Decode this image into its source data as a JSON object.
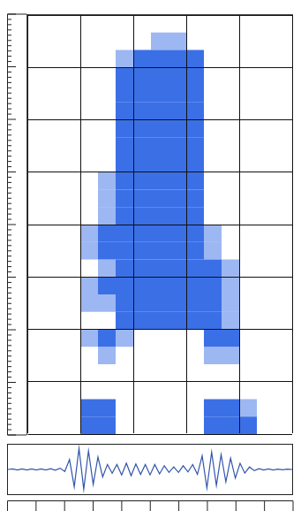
{
  "chart_data": [
    {
      "type": "heatmap",
      "xlim": [
        0,
        15
      ],
      "ylim": [
        0,
        24
      ],
      "xticks": [
        0,
        3,
        6,
        9,
        12,
        15
      ],
      "yticks": [
        0,
        3,
        6,
        9,
        12,
        15,
        18,
        21,
        24
      ],
      "grid": true,
      "tick_labels": false,
      "color": "#3b6fe6",
      "cells": [
        [
          0,
          0,
          0,
          1,
          1,
          0,
          0,
          0,
          0,
          0,
          1,
          1,
          1,
          0,
          0
        ],
        [
          0,
          0,
          0,
          1,
          1,
          0,
          0,
          0,
          0,
          0,
          1,
          1,
          0.5,
          0,
          0
        ],
        [
          0,
          0,
          0,
          0,
          0,
          0,
          0,
          0,
          0,
          0,
          0,
          0,
          0,
          0,
          0
        ],
        [
          0,
          0,
          0,
          0,
          0,
          0,
          0,
          0,
          0,
          0,
          0,
          0,
          0,
          0,
          0
        ],
        [
          0,
          0,
          0,
          0,
          0.5,
          0,
          0,
          0,
          0,
          0,
          0.5,
          0.5,
          0,
          0,
          0
        ],
        [
          0,
          0,
          0,
          0.5,
          1,
          0.5,
          0,
          0,
          0,
          0,
          1,
          1,
          0,
          0,
          0
        ],
        [
          0,
          0,
          0,
          0,
          0,
          1,
          1,
          1,
          1,
          1,
          1,
          0.5,
          0,
          0,
          0
        ],
        [
          0,
          0,
          0,
          0.5,
          0.5,
          1,
          1,
          1,
          1,
          1,
          1,
          0.5,
          0,
          0,
          0
        ],
        [
          0,
          0,
          0,
          0.5,
          1,
          1,
          1,
          1,
          1,
          1,
          1,
          0.5,
          0,
          0,
          0
        ],
        [
          0,
          0,
          0,
          0,
          0.5,
          1,
          1,
          1,
          1,
          1,
          1,
          0.5,
          0,
          0,
          0
        ],
        [
          0,
          0,
          0,
          0.5,
          1,
          1,
          1,
          1,
          1,
          1,
          0.5,
          0,
          0,
          0,
          0
        ],
        [
          0,
          0,
          0,
          0.5,
          1,
          1,
          1,
          1,
          1,
          1,
          0.5,
          0,
          0,
          0,
          0
        ],
        [
          0,
          0,
          0,
          0,
          0.5,
          1,
          1,
          1,
          1,
          1,
          0,
          0,
          0,
          0,
          0
        ],
        [
          0,
          0,
          0,
          0,
          0.5,
          1,
          1,
          1,
          1,
          1,
          0,
          0,
          0,
          0,
          0
        ],
        [
          0,
          0,
          0,
          0,
          0.5,
          1,
          1,
          1,
          1,
          1,
          0,
          0,
          0,
          0,
          0
        ],
        [
          0,
          0,
          0,
          0,
          0,
          1,
          1,
          1,
          1,
          1,
          0,
          0,
          0,
          0,
          0
        ],
        [
          0,
          0,
          0,
          0,
          0,
          1,
          1,
          1,
          1,
          1,
          0,
          0,
          0,
          0,
          0
        ],
        [
          0,
          0,
          0,
          0,
          0,
          1,
          1,
          1,
          1,
          1,
          0,
          0,
          0,
          0,
          0
        ],
        [
          0,
          0,
          0,
          0,
          0,
          1,
          1,
          1,
          1,
          1,
          0,
          0,
          0,
          0,
          0
        ],
        [
          0,
          0,
          0,
          0,
          0,
          1,
          1,
          1,
          1,
          1,
          0,
          0,
          0,
          0,
          0
        ],
        [
          0,
          0,
          0,
          0,
          0,
          1,
          1,
          1,
          1,
          1,
          0,
          0,
          0,
          0,
          0
        ],
        [
          0,
          0,
          0,
          0,
          0,
          0.5,
          1,
          1,
          1,
          1,
          0,
          0,
          0,
          0,
          0
        ],
        [
          0,
          0,
          0,
          0,
          0,
          0,
          0,
          0.5,
          0.5,
          0,
          0,
          0,
          0,
          0,
          0
        ],
        [
          0,
          0,
          0,
          0,
          0,
          0,
          0,
          0,
          0,
          0,
          0,
          0,
          0,
          0,
          0
        ]
      ]
    },
    {
      "type": "line",
      "xlim": [
        0,
        15
      ],
      "ylim": [
        -1,
        1
      ],
      "grid": false,
      "tick_labels": false,
      "color": "#3355aa",
      "x": [
        0,
        0.25,
        0.5,
        0.75,
        1,
        1.25,
        1.5,
        1.75,
        2,
        2.25,
        2.5,
        2.75,
        3,
        3.25,
        3.5,
        3.75,
        4,
        4.25,
        4.5,
        4.75,
        5,
        5.25,
        5.5,
        5.75,
        6,
        6.25,
        6.5,
        6.75,
        7,
        7.25,
        7.5,
        7.75,
        8,
        8.25,
        8.5,
        8.75,
        9,
        9.25,
        9.5,
        9.75,
        10,
        10.25,
        10.5,
        10.75,
        11,
        11.25,
        11.5,
        11.75,
        12,
        12.25,
        12.5,
        12.75,
        13,
        13.25,
        13.5,
        13.75,
        14,
        14.25,
        14.5,
        14.75,
        15
      ],
      "values": [
        0,
        0.02,
        -0.02,
        0.02,
        -0.02,
        0.02,
        -0.02,
        0.02,
        -0.02,
        0.03,
        -0.03,
        0.05,
        -0.08,
        0.4,
        -0.7,
        0.85,
        -0.8,
        0.75,
        -0.6,
        0.5,
        -0.3,
        0.2,
        -0.15,
        0.2,
        -0.22,
        0.25,
        -0.25,
        0.22,
        -0.2,
        0.2,
        -0.22,
        0.2,
        -0.18,
        0.15,
        -0.12,
        0.1,
        -0.12,
        0.15,
        -0.1,
        0.2,
        -0.2,
        0.55,
        -0.75,
        0.7,
        -0.65,
        0.6,
        -0.5,
        0.45,
        -0.35,
        0.25,
        -0.15,
        0.1,
        -0.05,
        0.03,
        -0.02,
        0.02,
        -0.02,
        0.01,
        -0.01,
        0.01,
        0
      ]
    }
  ]
}
